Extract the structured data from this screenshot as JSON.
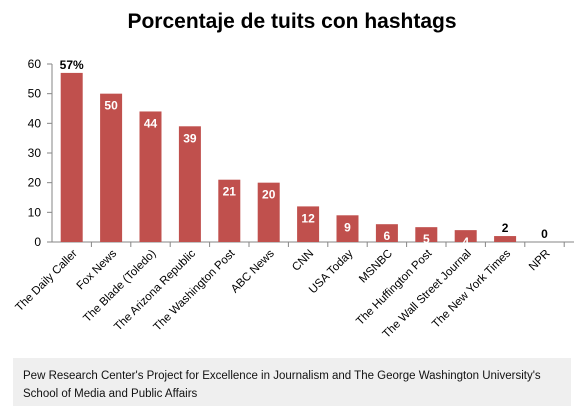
{
  "chart_data": {
    "type": "bar",
    "title": "Porcentaje de tuits con hashtags",
    "categories": [
      "The Daily Caller",
      "Fox News",
      "The Blade (Toledo)",
      "The Arizona Republic",
      "The Washington Post",
      "ABC News",
      "CNN",
      "USA Today",
      "MSNBC",
      "The Huffington Post",
      "The Wall Street Journal",
      "The New York Times",
      "NPR"
    ],
    "values": [
      57,
      50,
      44,
      39,
      21,
      20,
      12,
      9,
      6,
      5,
      4,
      2,
      0
    ],
    "data_labels": [
      "57%",
      "50",
      "44",
      "39",
      "21",
      "20",
      "12",
      "9",
      "6",
      "5",
      "4",
      "2",
      "0"
    ],
    "ylim": [
      0,
      60
    ],
    "yticks": [
      "0",
      "10",
      "20",
      "30",
      "40",
      "50",
      "60"
    ],
    "xlabel": "",
    "ylabel": "",
    "grid": false,
    "legend": "none",
    "bar_color": "#c0504d"
  },
  "source": {
    "text": "Pew Research Center's Project for Excellence in Journalism and The George Washington University's School of Media and Public Affairs"
  }
}
